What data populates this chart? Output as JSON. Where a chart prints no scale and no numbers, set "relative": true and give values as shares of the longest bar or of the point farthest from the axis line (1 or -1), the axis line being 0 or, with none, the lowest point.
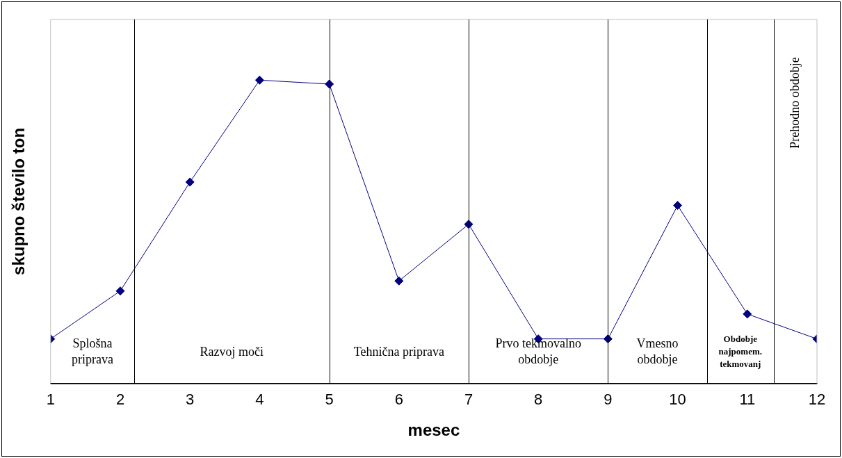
{
  "chart_data": {
    "type": "line",
    "xlabel": "mesec",
    "ylabel": "skupno število ton",
    "relative": true,
    "x": [
      1,
      2,
      3,
      4,
      5,
      6,
      7,
      8,
      9,
      10,
      11,
      12
    ],
    "values": [
      0.147,
      0.305,
      0.664,
      1,
      0.987,
      0.338,
      0.525,
      0.147,
      0.147,
      0.587,
      0.229,
      0.147
    ],
    "color": "#000080",
    "marker": "diamond",
    "line_style": "solid",
    "xlim": [
      1,
      12
    ],
    "xticks": [
      1,
      2,
      3,
      4,
      5,
      6,
      7,
      8,
      9,
      10,
      11,
      12
    ],
    "ref_lines": [
      {
        "axis": "x",
        "value": 2.2
      },
      {
        "axis": "x",
        "value": 5
      },
      {
        "axis": "x",
        "value": 7
      },
      {
        "axis": "x",
        "value": 9
      },
      {
        "axis": "x",
        "value": 10.42
      },
      {
        "axis": "x",
        "value": 11.38
      }
    ],
    "annotations": [
      "Splošna priprava",
      "Razvoj moči",
      "Tehnična priprava",
      "Prvo tekmovalno obdobje",
      "Vmesno obdobje",
      "Obdobje najpomem. tekmovanj",
      "Prehodno obdobje"
    ],
    "grid": false,
    "legend": false
  }
}
